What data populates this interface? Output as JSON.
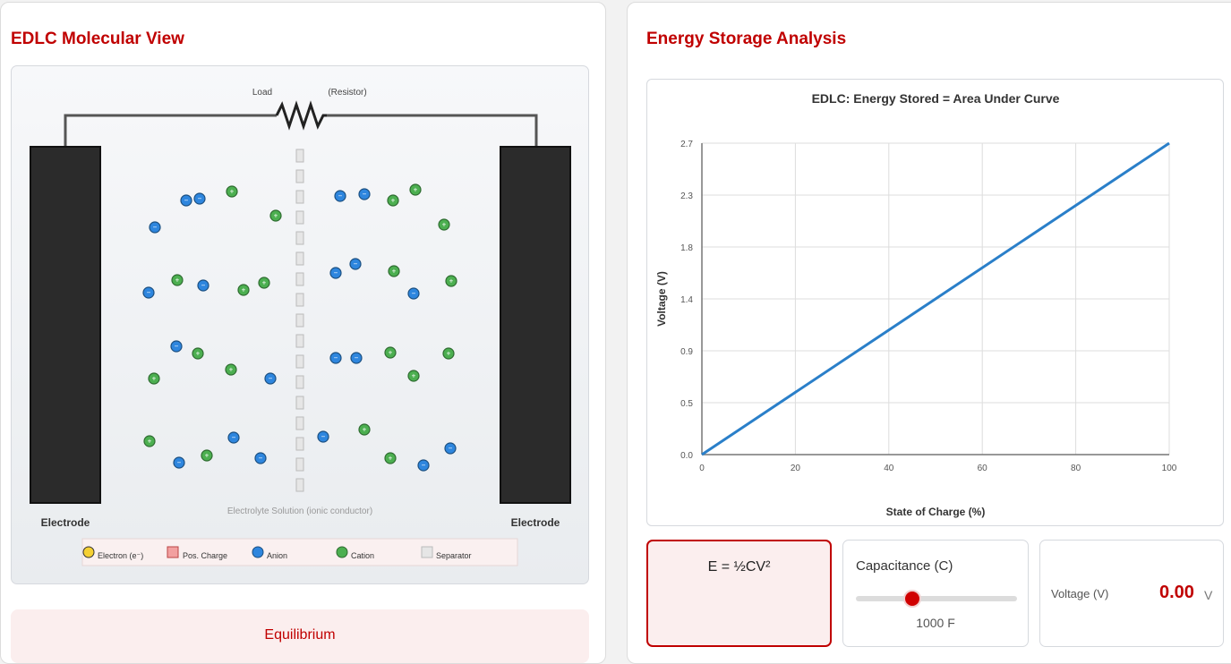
{
  "left_panel": {
    "title": "EDLC Molecular View",
    "load_label": "Load",
    "resistor_label": "(Resistor)",
    "electrode_left_label": "Electrode",
    "electrode_right_label": "Electrode",
    "electrolyte_label": "Electrolyte Solution (ionic conductor)",
    "legend": [
      {
        "label": "Electron (e⁻)",
        "icon": "electron-icon",
        "color": "#f5d033"
      },
      {
        "label": "Pos. Charge",
        "icon": "positive-charge-icon",
        "color": "#f2a0a0"
      },
      {
        "label": "Anion",
        "icon": "anion-icon",
        "color": "#2e86de"
      },
      {
        "label": "Cation",
        "icon": "cation-icon",
        "color": "#4caf50"
      },
      {
        "label": "Separator",
        "icon": "separator-icon",
        "color": "#e6e6e6"
      }
    ],
    "status": "Equilibrium"
  },
  "right_panel": {
    "title": "Energy Storage Analysis",
    "formula": "E = ½CV²",
    "capacitance_label": "Capacitance (C)",
    "capacitance_value": "1000 F",
    "capacitance_fraction": 0.35,
    "voltage_label": "Voltage (V)",
    "voltage_value": "0.00",
    "voltage_unit": "V"
  },
  "chart_data": {
    "type": "line",
    "title": "EDLC: Energy Stored = Area Under Curve",
    "xlabel": "State of Charge (%)",
    "ylabel": "Voltage (V)",
    "xlim": [
      0,
      100
    ],
    "ylim": [
      0,
      2.7
    ],
    "x_ticks": [
      "0",
      "20",
      "40",
      "60",
      "80",
      "100"
    ],
    "y_ticks": [
      "0.0",
      "0.5",
      "0.9",
      "1.4",
      "1.8",
      "2.3",
      "2.7"
    ],
    "grid": true,
    "series": [
      {
        "color": "#2a7fc9",
        "x": [
          0,
          100
        ],
        "y": [
          0,
          2.7
        ]
      }
    ]
  },
  "colors": {
    "accent": "#c00000",
    "anion": "#2e86de",
    "cation": "#4caf50",
    "electrode": "#2b2b2b"
  }
}
